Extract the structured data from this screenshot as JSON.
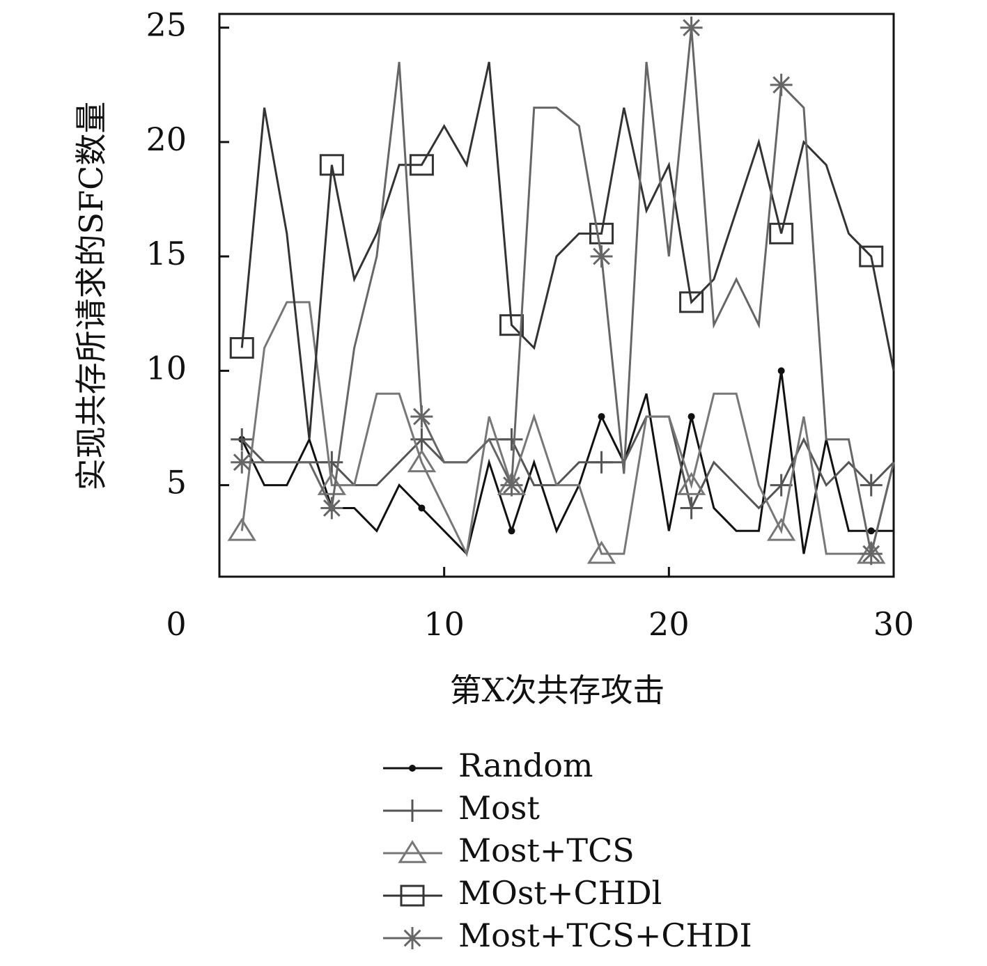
{
  "chart_data": {
    "type": "line",
    "x_label": "第X次共存攻击",
    "y_label": "实现共存所请求的SFC数量",
    "x": [
      1,
      2,
      3,
      4,
      5,
      6,
      7,
      8,
      9,
      10,
      11,
      12,
      13,
      14,
      15,
      16,
      17,
      18,
      19,
      20,
      21,
      22,
      23,
      24,
      25,
      26,
      27,
      28,
      29,
      30
    ],
    "xlim": [
      0,
      30
    ],
    "xticks": [
      0,
      10,
      20,
      30
    ],
    "ylim": [
      1,
      25.6
    ],
    "yticks": [
      5,
      10,
      15,
      20,
      25
    ],
    "legend": "bottom",
    "series": [
      {
        "name": "Random",
        "color": "#111111",
        "marker": "dot",
        "values": [
          7,
          5,
          5,
          7,
          4,
          4,
          3,
          5,
          4,
          3,
          2,
          6,
          3,
          6,
          3,
          5,
          8,
          6,
          9,
          3,
          8,
          4,
          3,
          3,
          10,
          2,
          7,
          3,
          3,
          3
        ]
      },
      {
        "name": "Most",
        "color": "#555555",
        "marker": "plus",
        "values": [
          7,
          6,
          6,
          6,
          6,
          5,
          5,
          6,
          7,
          6,
          6,
          7,
          7,
          5,
          5,
          6,
          6,
          6,
          8,
          8,
          4,
          6,
          5,
          4,
          5,
          7,
          5,
          6,
          5,
          6
        ]
      },
      {
        "name": "Most+TCS",
        "color": "#777777",
        "marker": "triangle",
        "values": [
          3,
          11,
          13,
          13,
          5,
          5,
          9,
          9,
          6,
          4,
          2,
          8,
          5,
          8,
          5,
          5,
          2,
          2,
          8,
          8,
          5,
          9,
          9,
          5,
          3,
          8,
          2,
          2,
          2,
          6
        ]
      },
      {
        "name": "MOst+CHDl",
        "color": "#333333",
        "marker": "square",
        "values": [
          11,
          21.5,
          16,
          7,
          19,
          14,
          16,
          19,
          19,
          20.7,
          19,
          23.5,
          12,
          11,
          15,
          16,
          16,
          21.5,
          17,
          19,
          13,
          14,
          17,
          20,
          16,
          20,
          19,
          16,
          15,
          10
        ]
      },
      {
        "name": "Most+TCS+CHDI",
        "color": "#666666",
        "marker": "star",
        "values": [
          6,
          6,
          6,
          6,
          4,
          11,
          15,
          23.5,
          8,
          6,
          6,
          7,
          5,
          21.5,
          21.5,
          20.7,
          15,
          5.5,
          23.5,
          15,
          25,
          12,
          14,
          12,
          22.5,
          21.5,
          7,
          7,
          2,
          6
        ]
      }
    ]
  }
}
